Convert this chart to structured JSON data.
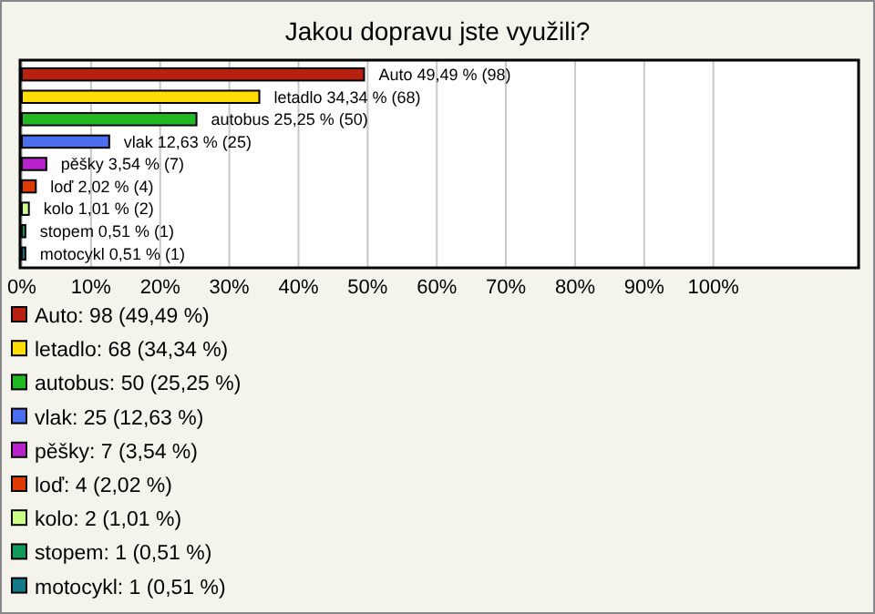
{
  "chart_data": {
    "type": "bar",
    "orientation": "horizontal",
    "title": "Jakou dopravu jste využili?",
    "categories": [
      "Auto",
      "letadlo",
      "autobus",
      "vlak",
      "pěšky",
      "loď",
      "kolo",
      "stopem",
      "motocykl"
    ],
    "values": [
      49.49,
      34.34,
      25.25,
      12.63,
      3.54,
      2.02,
      1.01,
      0.51,
      0.51
    ],
    "value_labels": [
      "49,49 % (98)",
      "34,34 % (68)",
      "25,25 % (50)",
      "12,63 % (25)",
      "3,54 % (7)",
      "2,02 % (4)",
      "1,01 % (2)",
      "0,51 % (1)",
      "0,51 % (1)"
    ],
    "colors": [
      "#b8200f",
      "#ffdd00",
      "#22b822",
      "#4a6ef0",
      "#b922cc",
      "#dd3a00",
      "#ccff88",
      "#13995a",
      "#137a88"
    ],
    "xlim": [
      0,
      121
    ],
    "xticks": [
      {
        "value": 0,
        "label": "0%"
      },
      {
        "value": 10,
        "label": "10%"
      },
      {
        "value": 20,
        "label": "20%"
      },
      {
        "value": 30,
        "label": "30%"
      },
      {
        "value": 40,
        "label": "40%"
      },
      {
        "value": 50,
        "label": "50%"
      },
      {
        "value": 60,
        "label": "60%"
      },
      {
        "value": 70,
        "label": "70%"
      },
      {
        "value": 80,
        "label": "80%"
      },
      {
        "value": 90,
        "label": "90%"
      },
      {
        "value": 100,
        "label": "100%"
      }
    ],
    "grid": "x",
    "annotations": [
      "Auto: 98 (49,49 %)",
      "letadlo: 68 (34,34 %)",
      "autobus: 50 (25,25 %)",
      "vlak: 25 (12,63 %)",
      "pěšky: 7 (3,54 %)",
      "loď: 4 (2,02 %)",
      "kolo: 2 (1,01 %)",
      "stopem: 1 (0,51 %)",
      "motocykl: 1 (0,51 %)"
    ]
  }
}
